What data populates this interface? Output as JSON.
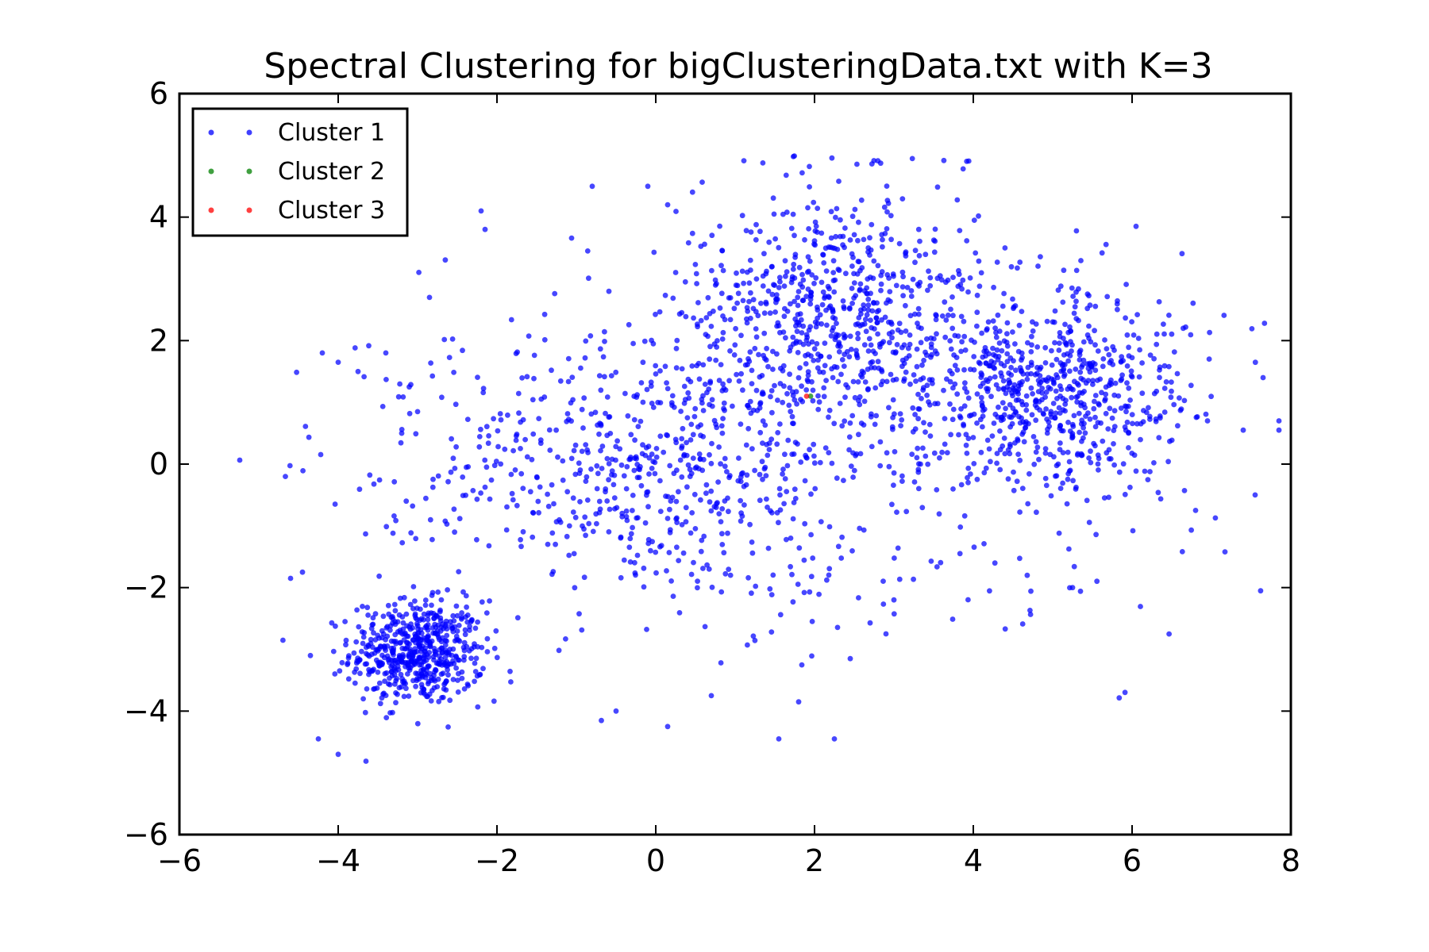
{
  "chart_data": {
    "type": "scatter",
    "title": "Spectral Clustering for bigClusteringData.txt with K=3",
    "xlabel": "",
    "ylabel": "",
    "xlim": [
      -6,
      8
    ],
    "ylim": [
      -6,
      6
    ],
    "xticks": [
      -6,
      -4,
      -2,
      0,
      2,
      4,
      6,
      8
    ],
    "yticks": [
      -6,
      -4,
      -2,
      0,
      2,
      4,
      6
    ],
    "xtick_labels": [
      "−6",
      "−4",
      "−2",
      "0",
      "2",
      "4",
      "6",
      "8"
    ],
    "ytick_labels": [
      "−6",
      "−4",
      "−2",
      "0",
      "2",
      "4",
      "6"
    ],
    "grid": false,
    "legend_position": "top-left",
    "series": [
      {
        "name": "Cluster 1",
        "color": "#0000ff",
        "groups": [
          {
            "center": [
              -3.0,
              -3.05
            ],
            "spread": [
              0.42,
              0.42
            ],
            "count": 560
          },
          {
            "center": [
              0.0,
              -0.1
            ],
            "spread": [
              1.35,
              1.05
            ],
            "count": 520
          },
          {
            "center": [
              2.2,
              2.4
            ],
            "spread": [
              0.95,
              1.05
            ],
            "count": 720
          },
          {
            "center": [
              4.9,
              1.2
            ],
            "spread": [
              0.95,
              0.85
            ],
            "count": 760
          },
          {
            "center": [
              -1.8,
              0.3
            ],
            "spread": [
              1.4,
              1.5
            ],
            "count": 130
          },
          {
            "center": [
              3.0,
              -1.6
            ],
            "spread": [
              1.8,
              1.0
            ],
            "count": 90
          }
        ],
        "outliers": [
          [
            -4.6,
            -1.85
          ],
          [
            -4.45,
            -1.75
          ],
          [
            -4.35,
            -3.1
          ],
          [
            -4.25,
            -4.45
          ],
          [
            -4.0,
            -4.7
          ],
          [
            -4.2,
            1.8
          ],
          [
            -4.0,
            1.65
          ],
          [
            -3.75,
            1.5
          ],
          [
            -3.4,
            1.8
          ],
          [
            -3.2,
            0.5
          ],
          [
            -2.85,
            2.7
          ],
          [
            -2.2,
            4.1
          ],
          [
            -2.15,
            3.8
          ],
          [
            -0.8,
            4.5
          ],
          [
            -0.1,
            4.5
          ],
          [
            0.15,
            4.2
          ],
          [
            6.05,
            3.85
          ],
          [
            7.65,
            1.4
          ],
          [
            7.85,
            0.7
          ],
          [
            7.85,
            0.55
          ],
          [
            7.55,
            -0.5
          ],
          [
            7.4,
            0.55
          ],
          [
            6.95,
            0.7
          ],
          [
            6.8,
            -0.75
          ],
          [
            2.25,
            -4.45
          ],
          [
            1.55,
            -4.45
          ],
          [
            1.8,
            -3.85
          ],
          [
            0.15,
            -4.25
          ],
          [
            -0.5,
            -4.0
          ],
          [
            2.45,
            -3.15
          ],
          [
            3.0,
            -2.2
          ],
          [
            5.25,
            -2.0
          ],
          [
            2.9,
            -2.75
          ],
          [
            0.7,
            -3.75
          ]
        ],
        "cap_y": 5.0
      },
      {
        "name": "Cluster 2",
        "color": "#008000",
        "points": [
          [
            1.95,
            1.1
          ]
        ]
      },
      {
        "name": "Cluster 3",
        "color": "#ff0000",
        "points": [
          [
            1.9,
            1.1
          ]
        ]
      }
    ]
  }
}
